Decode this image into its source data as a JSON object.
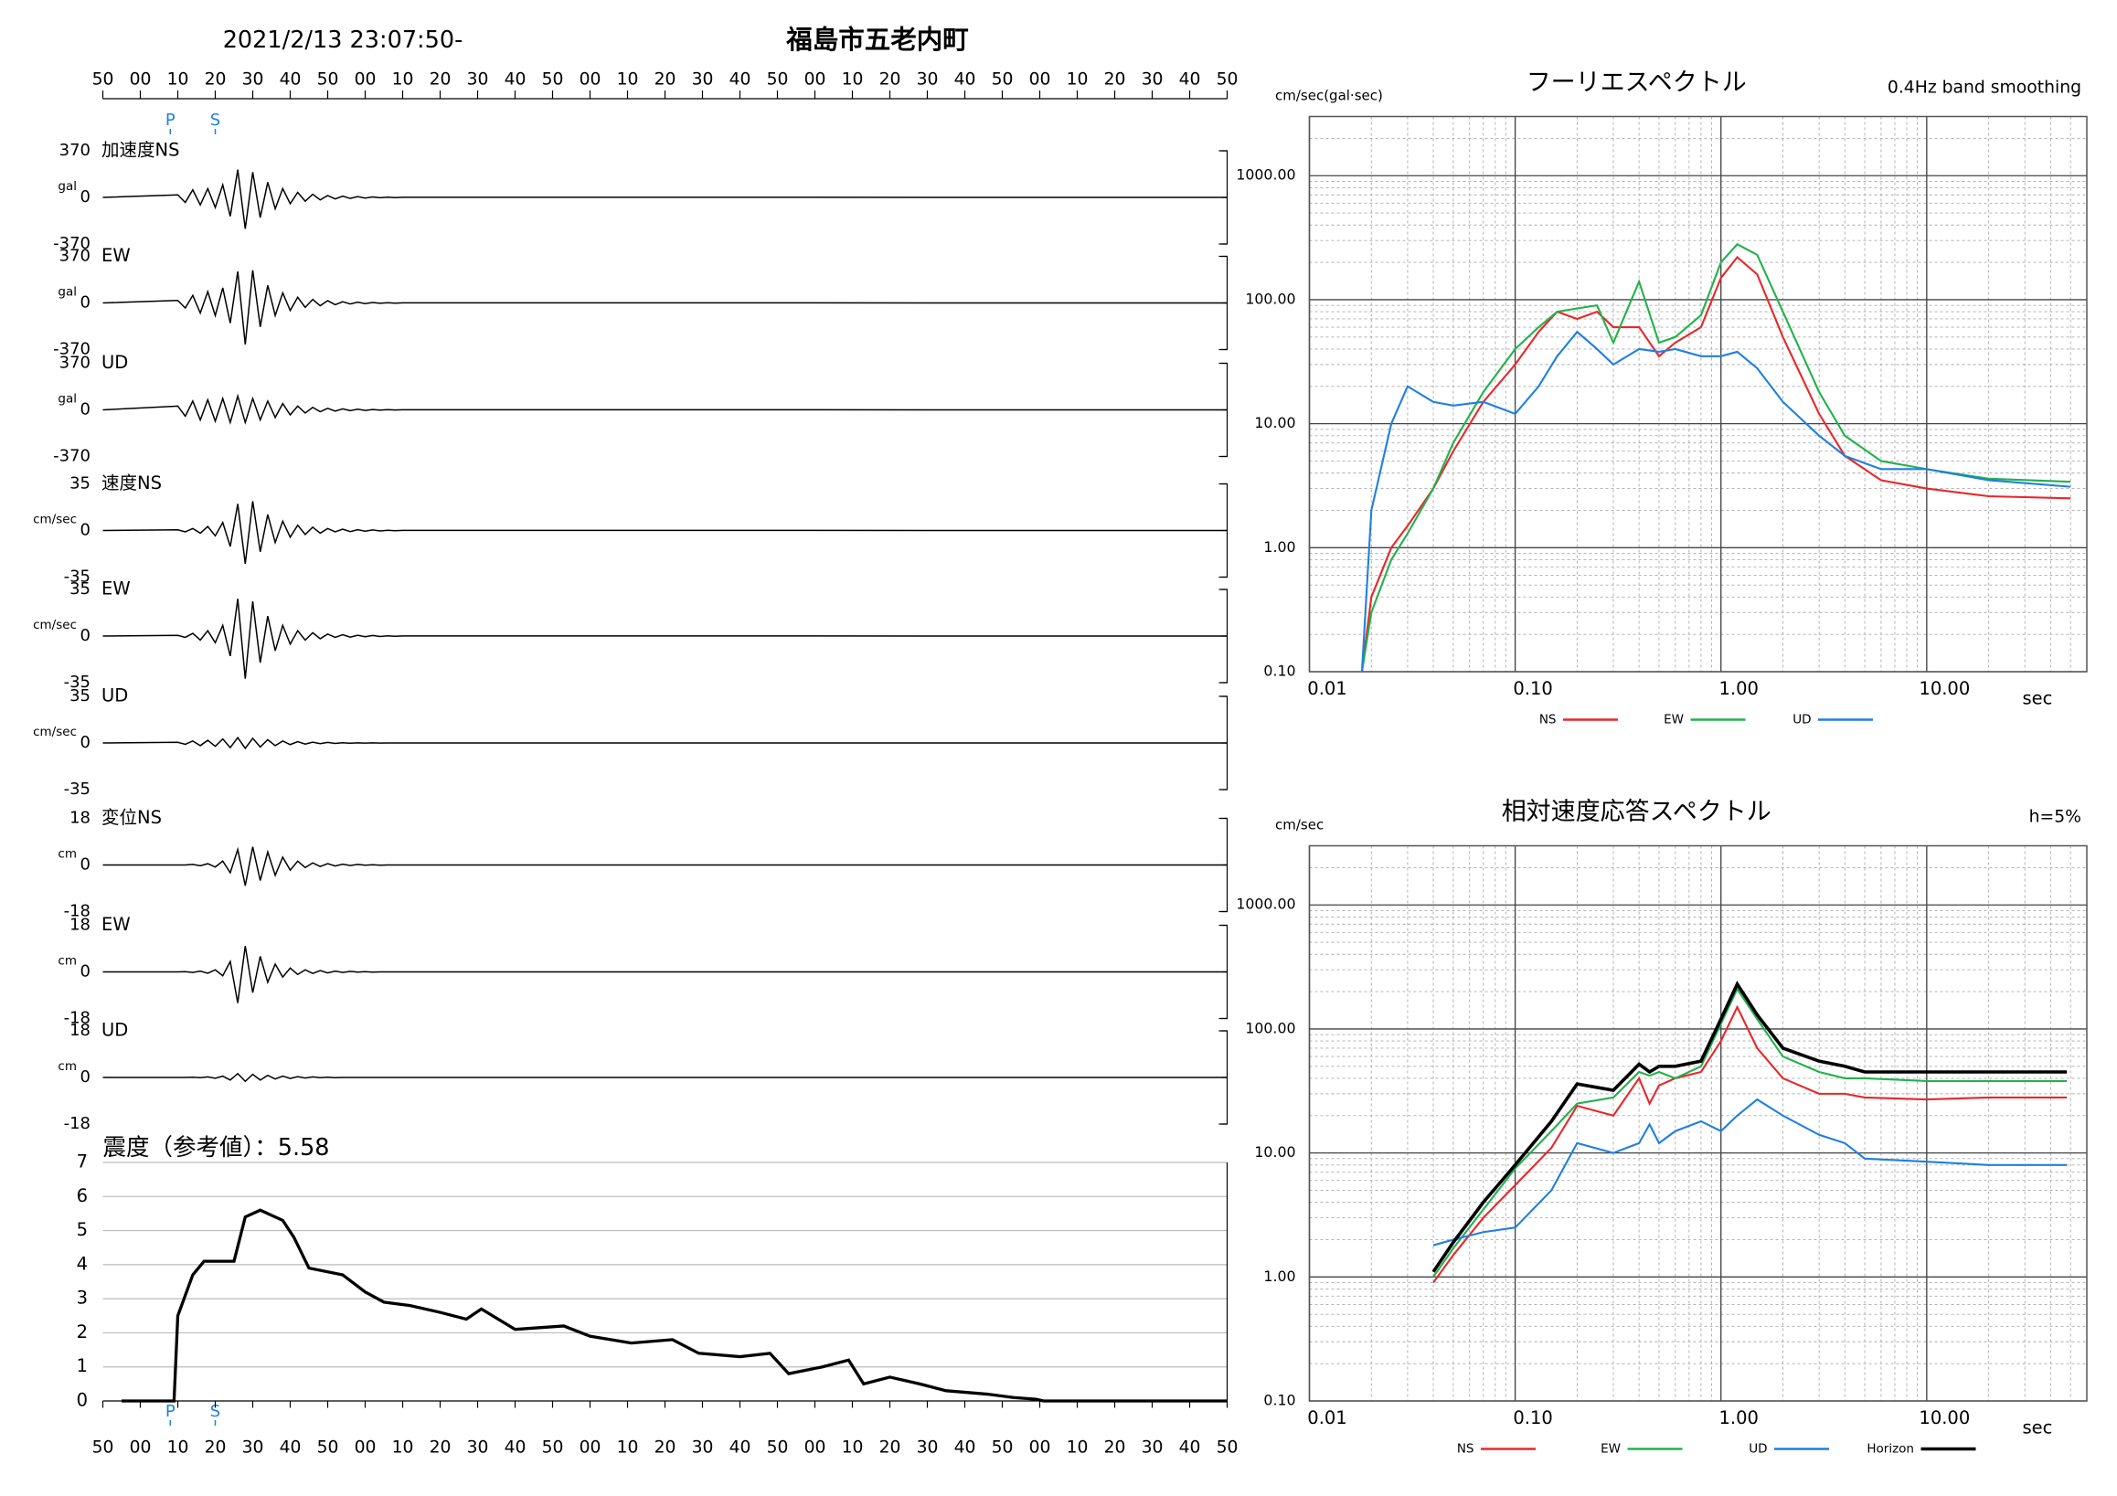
{
  "header": {
    "datetime": "2021/2/13 23:07:50-",
    "location": "福島市五老内町"
  },
  "chart_data": [
    {
      "type": "waveform",
      "xlim": [
        0,
        300
      ],
      "xticks": [
        {
          "value": 0,
          "label": "50"
        },
        {
          "value": 10,
          "label": "00"
        },
        {
          "value": 20,
          "label": "10"
        },
        {
          "value": 30,
          "label": "20"
        },
        {
          "value": 40,
          "label": "30"
        },
        {
          "value": 50,
          "label": "40"
        },
        {
          "value": 60,
          "label": "50"
        },
        {
          "value": 70,
          "label": "00"
        },
        {
          "value": 80,
          "label": "10"
        },
        {
          "value": 90,
          "label": "20"
        },
        {
          "value": 100,
          "label": "30"
        },
        {
          "value": 110,
          "label": "40"
        },
        {
          "value": 120,
          "label": "50"
        },
        {
          "value": 130,
          "label": "00"
        },
        {
          "value": 140,
          "label": "10"
        },
        {
          "value": 150,
          "label": "20"
        },
        {
          "value": 160,
          "label": "30"
        },
        {
          "value": 170,
          "label": "40"
        },
        {
          "value": 180,
          "label": "50"
        },
        {
          "value": 190,
          "label": "00"
        },
        {
          "value": 200,
          "label": "10"
        },
        {
          "value": 210,
          "label": "20"
        },
        {
          "value": 220,
          "label": "30"
        },
        {
          "value": 230,
          "label": "40"
        },
        {
          "value": 240,
          "label": "50"
        },
        {
          "value": 250,
          "label": "00"
        },
        {
          "value": 260,
          "label": "10"
        },
        {
          "value": 270,
          "label": "20"
        },
        {
          "value": 280,
          "label": "30"
        },
        {
          "value": 290,
          "label": "40"
        },
        {
          "value": 300,
          "label": "50"
        }
      ],
      "markers": [
        {
          "label": "P",
          "x": 18
        },
        {
          "label": "S",
          "x": 30
        }
      ],
      "marker_color": "#1f7fe0",
      "color": "#000000",
      "x": [
        0,
        20,
        22,
        24,
        26,
        28,
        30,
        32,
        34,
        36,
        38,
        40,
        42,
        44,
        46,
        48,
        50,
        52,
        54,
        56,
        58,
        60,
        62,
        64,
        66,
        68,
        70,
        72,
        74,
        76,
        78,
        80,
        300
      ],
      "panels": [
        {
          "label": "加速度NS",
          "unit": "gal",
          "ylim": [
            -370,
            370
          ],
          "yticks": [
            370,
            0,
            -370
          ],
          "values": [
            0,
            20,
            -40,
            60,
            -60,
            70,
            -80,
            100,
            -150,
            220,
            -250,
            200,
            -160,
            120,
            -90,
            70,
            -50,
            40,
            -30,
            25,
            -20,
            15,
            -12,
            10,
            -8,
            6,
            -5,
            4,
            -3,
            2,
            -2,
            1,
            0
          ]
        },
        {
          "label": "EW",
          "unit": "gal",
          "ylim": [
            -370,
            370
          ],
          "yticks": [
            370,
            0,
            -370
          ],
          "values": [
            0,
            20,
            -40,
            60,
            -80,
            90,
            -100,
            120,
            -160,
            250,
            -330,
            260,
            -190,
            140,
            -100,
            80,
            -60,
            45,
            -35,
            28,
            -22,
            18,
            -14,
            10,
            -8,
            6,
            -5,
            4,
            -3,
            2,
            -2,
            1,
            0
          ]
        },
        {
          "label": "UD",
          "unit": "gal",
          "ylim": [
            -370,
            370
          ],
          "yticks": [
            370,
            0,
            -370
          ],
          "values": [
            0,
            30,
            -50,
            70,
            -80,
            80,
            -90,
            90,
            -100,
            110,
            -100,
            90,
            -80,
            70,
            -60,
            50,
            -40,
            30,
            -25,
            20,
            -15,
            12,
            -10,
            8,
            -6,
            5,
            -4,
            3,
            -2,
            2,
            -1,
            1,
            0
          ]
        },
        {
          "label": "速度NS",
          "unit": "cm/sec",
          "ylim": [
            -35,
            35
          ],
          "yticks": [
            35,
            0,
            -35
          ],
          "values": [
            0,
            0.5,
            -1,
            1.5,
            -2,
            3,
            -4,
            6,
            -12,
            20,
            -25,
            22,
            -16,
            12,
            -9,
            7,
            -5,
            4,
            -3,
            2.5,
            -2,
            1.5,
            -1,
            1,
            -0.8,
            0.6,
            -0.5,
            0.4,
            -0.3,
            0.2,
            -0.2,
            0.1,
            0
          ]
        },
        {
          "label": "EW",
          "unit": "cm/sec",
          "ylim": [
            -35,
            35
          ],
          "yticks": [
            35,
            0,
            -35
          ],
          "values": [
            0,
            0.5,
            -1,
            2,
            -3,
            4,
            -5,
            8,
            -15,
            28,
            -32,
            26,
            -20,
            15,
            -11,
            8,
            -6,
            4,
            -3,
            2.5,
            -2,
            1.5,
            -1,
            1,
            -0.8,
            0.6,
            -0.5,
            0.4,
            -0.3,
            0.2,
            -0.2,
            0.1,
            0
          ]
        },
        {
          "label": "UD",
          "unit": "cm/sec",
          "ylim": [
            -35,
            35
          ],
          "yticks": [
            35,
            0,
            -35
          ],
          "values": [
            0,
            0.5,
            -1,
            1.5,
            -2,
            2,
            -2.5,
            3,
            -3.5,
            4,
            -4,
            3.5,
            -3,
            2.5,
            -2,
            1.5,
            -1.2,
            1,
            -0.8,
            0.6,
            -0.5,
            0.4,
            -0.3,
            0.2,
            -0.2,
            0.1,
            -0.1,
            0.1,
            -0.1,
            0,
            0,
            0,
            0
          ]
        },
        {
          "label": "変位NS",
          "unit": "cm",
          "ylim": [
            -18,
            18
          ],
          "yticks": [
            18,
            0,
            -18
          ],
          "values": [
            0,
            0,
            0,
            0.2,
            -0.3,
            0.5,
            -0.8,
            1.5,
            -3,
            6,
            -8,
            7,
            -6,
            5,
            -4,
            3,
            -2,
            1.5,
            -1,
            0.8,
            -0.6,
            0.5,
            -0.4,
            0.3,
            -0.2,
            0.2,
            -0.1,
            0.1,
            -0.1,
            0,
            0,
            0,
            0
          ]
        },
        {
          "label": "EW",
          "unit": "cm",
          "ylim": [
            -18,
            18
          ],
          "yticks": [
            18,
            0,
            -18
          ],
          "values": [
            0,
            0,
            0.1,
            -0.2,
            0.3,
            -0.5,
            0.8,
            -1.5,
            4,
            -12,
            10,
            -8,
            6,
            -4,
            3,
            -2,
            1.5,
            -1,
            0.8,
            -0.6,
            0.5,
            -0.4,
            0.3,
            -0.2,
            0.2,
            -0.1,
            0.1,
            -0.1,
            0,
            0,
            0,
            0,
            0
          ]
        },
        {
          "label": "UD",
          "unit": "cm",
          "ylim": [
            -18,
            18
          ],
          "yticks": [
            18,
            0,
            -18
          ],
          "values": [
            0,
            0,
            0,
            0.1,
            -0.1,
            0.2,
            -0.3,
            0.5,
            -1,
            1.5,
            -1.5,
            1.2,
            -1,
            0.8,
            -0.6,
            0.5,
            -0.4,
            0.3,
            -0.2,
            0.2,
            -0.1,
            0.1,
            -0.1,
            0,
            0,
            0,
            0,
            0,
            0,
            0,
            0,
            0,
            0
          ]
        }
      ]
    },
    {
      "type": "intensity",
      "title": "震度（参考値）：5.58",
      "ylim": [
        0,
        7
      ],
      "yticks": [
        0,
        1,
        2,
        3,
        4,
        5,
        6,
        7
      ],
      "grid": true,
      "color": "#000000",
      "x": [
        5,
        19,
        20,
        24,
        27,
        35,
        38,
        42,
        48,
        51,
        55,
        64,
        70,
        75,
        82,
        90,
        97,
        101,
        110,
        123,
        130,
        141,
        152,
        159,
        170,
        178,
        183,
        192,
        199,
        203,
        210,
        218,
        225,
        236,
        243,
        249,
        251,
        300
      ],
      "values": [
        0,
        0,
        2.5,
        3.7,
        4.1,
        4.1,
        5.4,
        5.6,
        5.3,
        4.8,
        3.9,
        3.7,
        3.2,
        2.9,
        2.8,
        2.6,
        2.4,
        2.7,
        2.1,
        2.2,
        1.9,
        1.7,
        1.8,
        1.4,
        1.3,
        1.4,
        0.8,
        1.0,
        1.2,
        0.5,
        0.7,
        0.5,
        0.3,
        0.2,
        0.1,
        0.05,
        0,
        0
      ]
    },
    {
      "type": "line",
      "title": "フーリエスペクトル",
      "subtitle": "0.4Hz band smoothing",
      "y_label": "cm/sec(gal·sec)",
      "x_label": "sec",
      "log_x": true,
      "log_y": true,
      "grid": true,
      "xlim": [
        0.01,
        60
      ],
      "xticks": [
        0.01,
        {
          "value": 0.1,
          "label": "0.10"
        },
        {
          "value": 1,
          "label": "1.00"
        },
        {
          "value": 10,
          "label": "10.00"
        }
      ],
      "ylim": [
        0.1,
        3000
      ],
      "yticks": [
        {
          "value": 0.1,
          "label": "0.10"
        },
        {
          "value": 1,
          "label": "1.00"
        },
        {
          "value": 10,
          "label": "10.00"
        },
        {
          "value": 100,
          "label": "100.00"
        },
        {
          "value": 1000,
          "label": "1000.00"
        }
      ],
      "x": [
        0.018,
        0.02,
        0.025,
        0.03,
        0.04,
        0.05,
        0.07,
        0.1,
        0.13,
        0.16,
        0.2,
        0.25,
        0.3,
        0.4,
        0.5,
        0.6,
        0.8,
        1,
        1.2,
        1.5,
        2,
        3,
        4,
        6,
        10,
        20,
        50
      ],
      "series": [
        {
          "name": "NS",
          "color": "#e8272a",
          "values": [
            0.1,
            0.4,
            1,
            1.5,
            3,
            6,
            15,
            30,
            55,
            80,
            70,
            80,
            60,
            60,
            35,
            45,
            60,
            150,
            220,
            160,
            50,
            12,
            5.5,
            3.5,
            3,
            2.6,
            2.5
          ]
        },
        {
          "name": "EW",
          "color": "#22b14c",
          "values": [
            0.1,
            0.3,
            0.8,
            1.3,
            3,
            7,
            18,
            40,
            60,
            80,
            85,
            90,
            45,
            140,
            45,
            50,
            75,
            200,
            280,
            230,
            80,
            18,
            8,
            5,
            4.3,
            3.6,
            3.4
          ]
        },
        {
          "name": "UD",
          "color": "#1f7fe0",
          "values": [
            0.1,
            2,
            10,
            20,
            15,
            14,
            15,
            12,
            20,
            35,
            55,
            40,
            30,
            40,
            38,
            40,
            35,
            35,
            38,
            28,
            15,
            8,
            5.5,
            4.3,
            4.3,
            3.5,
            3.1
          ]
        }
      ]
    },
    {
      "type": "line",
      "title": "相対速度応答スペクトル",
      "subtitle": "h=5%",
      "y_label": "cm/sec",
      "x_label": "sec",
      "log_x": true,
      "log_y": true,
      "grid": true,
      "xlim": [
        0.01,
        60
      ],
      "xticks": [
        0.01,
        {
          "value": 0.1,
          "label": "0.10"
        },
        {
          "value": 1,
          "label": "1.00"
        },
        {
          "value": 10,
          "label": "10.00"
        }
      ],
      "ylim": [
        0.1,
        3000
      ],
      "yticks": [
        {
          "value": 0.1,
          "label": "0.10"
        },
        {
          "value": 1,
          "label": "1.00"
        },
        {
          "value": 10,
          "label": "10.00"
        },
        {
          "value": 100,
          "label": "100.00"
        },
        {
          "value": 1000,
          "label": "1000.00"
        }
      ],
      "x": [
        0.04,
        0.05,
        0.07,
        0.1,
        0.15,
        0.2,
        0.3,
        0.4,
        0.45,
        0.5,
        0.6,
        0.8,
        1.0,
        1.2,
        1.5,
        2,
        3,
        4,
        5,
        10,
        20,
        48
      ],
      "series": [
        {
          "name": "NS",
          "color": "#e8272a",
          "values": [
            0.9,
            1.5,
            3,
            5.5,
            11,
            24,
            20,
            40,
            25,
            35,
            40,
            45,
            80,
            150,
            70,
            40,
            30,
            30,
            28,
            27,
            28,
            28
          ]
        },
        {
          "name": "EW",
          "color": "#22b14c",
          "values": [
            1,
            1.7,
            3.5,
            7.5,
            15,
            25,
            28,
            45,
            42,
            45,
            40,
            50,
            110,
            210,
            120,
            60,
            45,
            40,
            40,
            38,
            38,
            38
          ]
        },
        {
          "name": "UD",
          "color": "#1f7fe0",
          "values": [
            1.8,
            2,
            2.3,
            2.5,
            5,
            12,
            10,
            12,
            17,
            12,
            15,
            18,
            15,
            20,
            27,
            20,
            14,
            12,
            9,
            8.5,
            8,
            8
          ]
        },
        {
          "name": "Horizon",
          "color": "#000000",
          "values": [
            1.1,
            1.9,
            4,
            8,
            18,
            36,
            32,
            52,
            45,
            50,
            50,
            55,
            120,
            230,
            130,
            70,
            55,
            50,
            45,
            45,
            45,
            45
          ]
        }
      ]
    }
  ]
}
